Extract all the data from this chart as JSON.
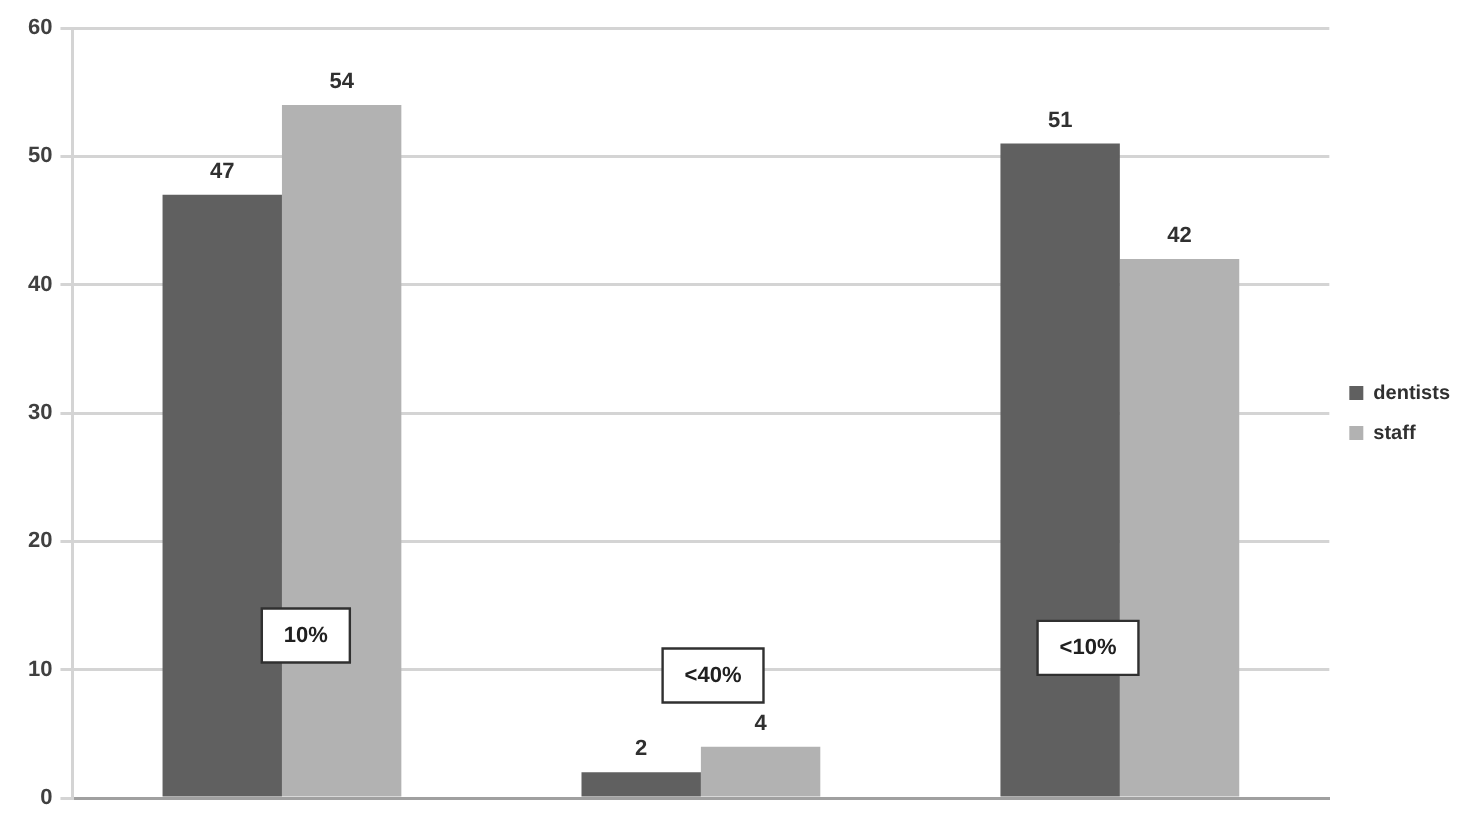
{
  "chart_data": {
    "type": "bar",
    "categories": [
      null,
      null,
      null
    ],
    "series": [
      {
        "name": "dentists",
        "color": "#606060",
        "values": [
          47,
          2,
          51
        ]
      },
      {
        "name": "staff",
        "color": "#b2b2b2",
        "values": [
          54,
          4,
          42
        ]
      }
    ],
    "ylim": [
      0,
      60
    ],
    "yticks": [
      0,
      10,
      20,
      30,
      40,
      50,
      60
    ],
    "grid": "y",
    "legend": "right",
    "tick_labels": "y",
    "data_labels": true,
    "annotations": [
      "10%",
      "<40%",
      "<10%"
    ]
  }
}
